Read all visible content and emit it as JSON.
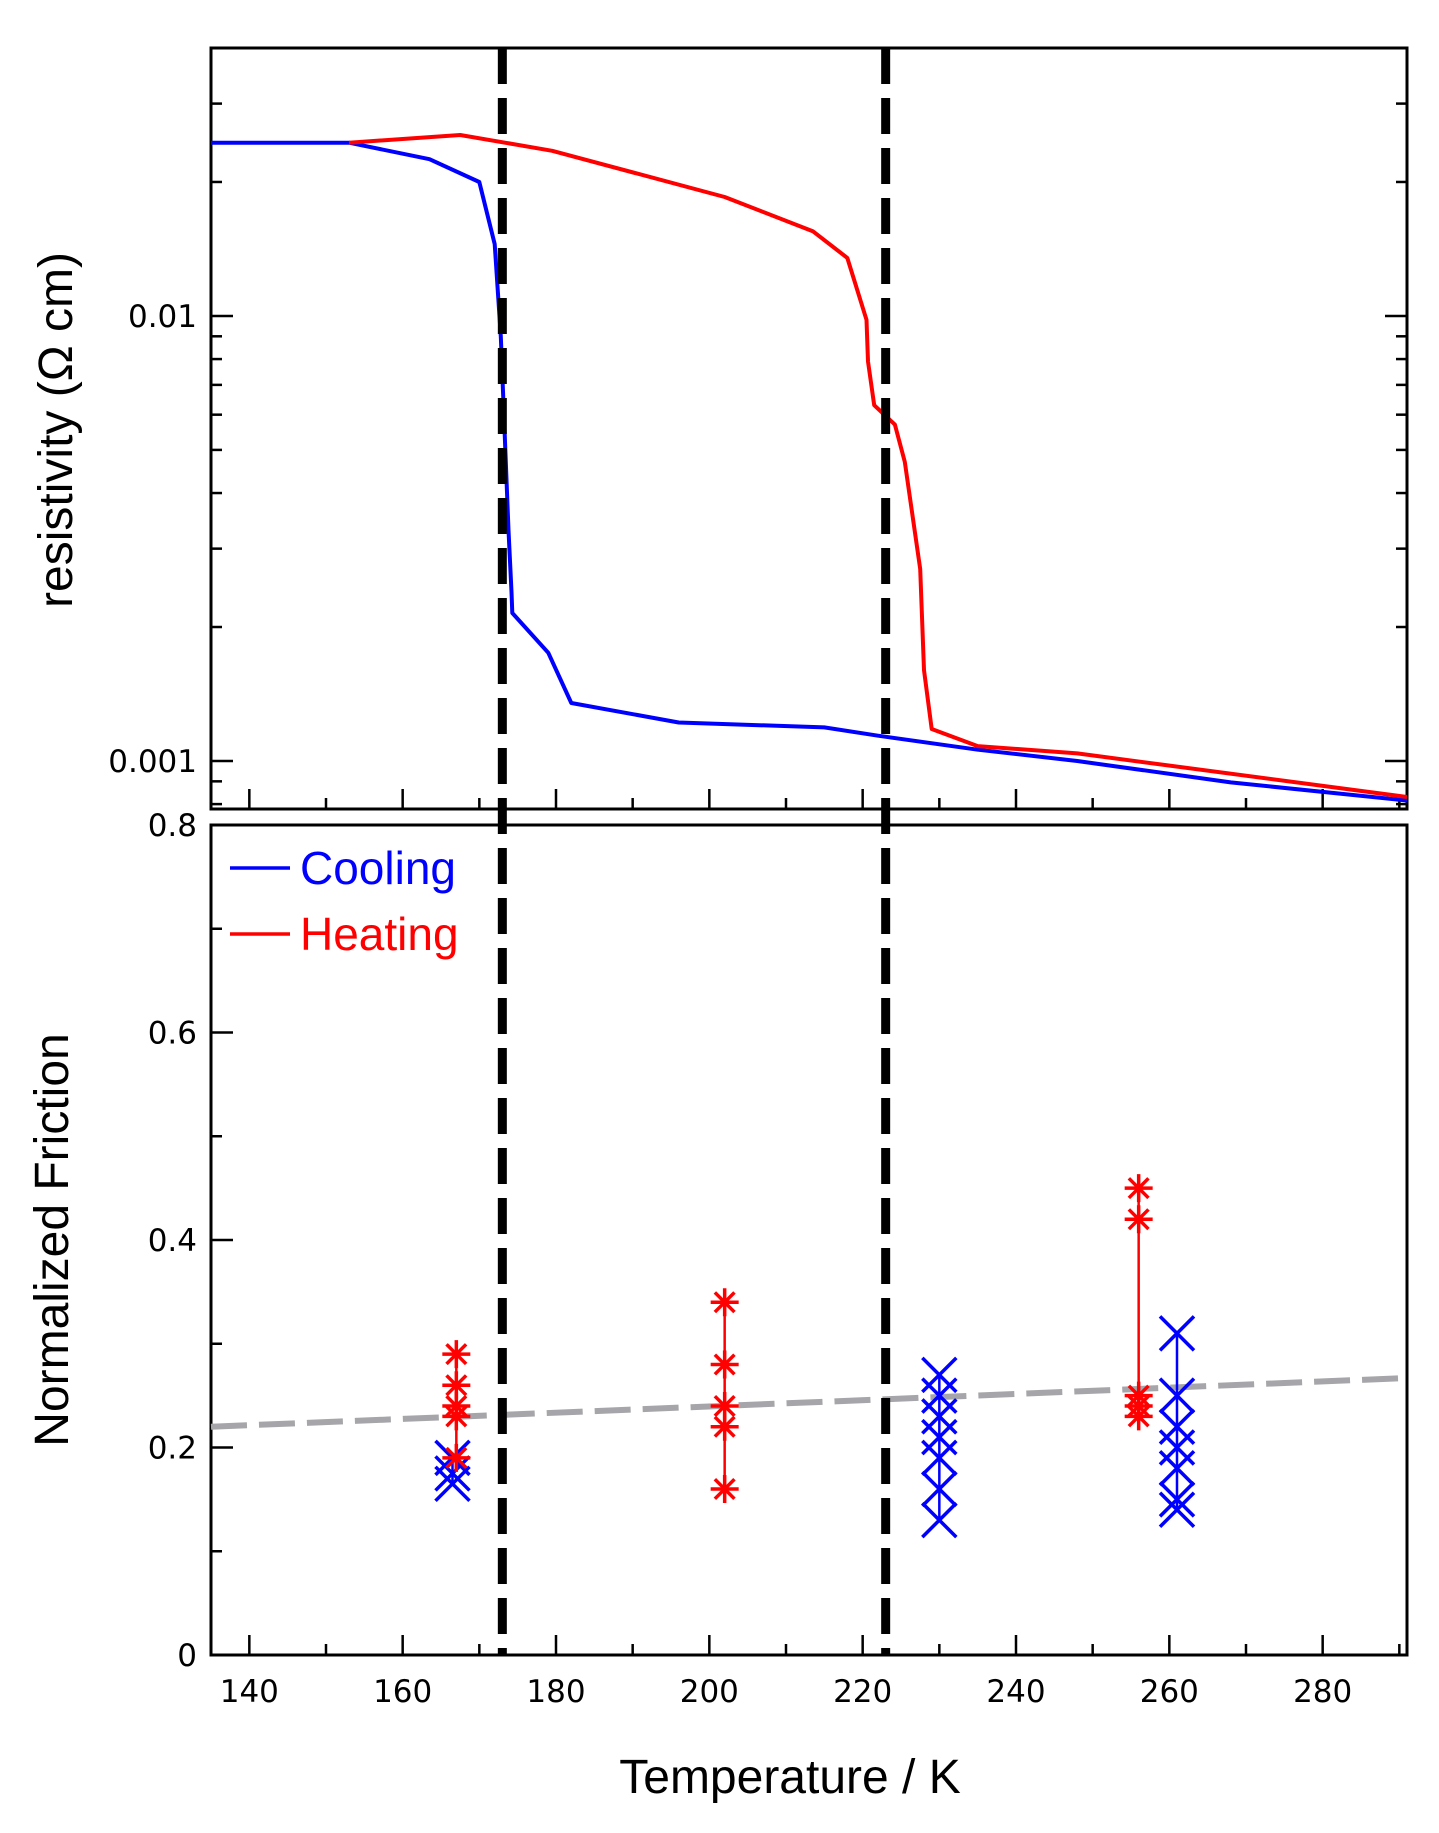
{
  "chart_data": [
    {
      "type": "line",
      "yscale": "log",
      "ylabel": "resistivity (Ω cm)",
      "xlim": [
        135,
        291
      ],
      "ylim": [
        0.00078,
        0.04
      ],
      "yticks": [
        {
          "value": 0.01,
          "label": "0.01"
        },
        {
          "value": 0.001,
          "label": "0.001"
        }
      ],
      "series": [
        {
          "name": "Cooling",
          "color": "#0000ff",
          "x": [
            135,
            153,
            163.5,
            170,
            172,
            172.8,
            173.3,
            173.8,
            174.2,
            174.3,
            179,
            182,
            196,
            215,
            222,
            235,
            248,
            268,
            291
          ],
          "y": [
            0.0245,
            0.0245,
            0.0225,
            0.02,
            0.0145,
            0.009,
            0.0055,
            0.0033,
            0.0024,
            0.00215,
            0.00175,
            0.00135,
            0.00122,
            0.00119,
            0.00114,
            0.00106,
            0.001,
            0.000895,
            0.000815
          ]
        },
        {
          "name": "Heating",
          "color": "#ff0000",
          "x": [
            153,
            167.5,
            179.5,
            202,
            213.5,
            218,
            220.5,
            220.7,
            221.5,
            224.2,
            225.5,
            227.5,
            228,
            229,
            235,
            248,
            291
          ],
          "y": [
            0.0245,
            0.0255,
            0.0235,
            0.0185,
            0.0155,
            0.0135,
            0.0098,
            0.0079,
            0.0063,
            0.0057,
            0.0047,
            0.0027,
            0.0016,
            0.00118,
            0.00108,
            0.00104,
            0.00083
          ]
        }
      ]
    },
    {
      "type": "scatter",
      "xlabel": "Temperature / K",
      "ylabel": "Normalized Friction",
      "xlim": [
        135,
        291
      ],
      "ylim": [
        0,
        0.8
      ],
      "xticks": [
        140,
        160,
        180,
        200,
        220,
        240,
        260,
        280
      ],
      "yticks": [
        {
          "value": 0,
          "label": "0"
        },
        {
          "value": 0.2,
          "label": "0.2"
        },
        {
          "value": 0.4,
          "label": "0.4"
        },
        {
          "value": 0.6,
          "label": "0.6"
        },
        {
          "value": 0.8,
          "label": "0.8"
        }
      ],
      "legend": {
        "position": "top-left",
        "entries": [
          {
            "label": "Cooling",
            "color": "#0000ff"
          },
          {
            "label": "Heating",
            "color": "#ff0000"
          }
        ]
      },
      "heating_groups": [
        {
          "x": 167,
          "values": [
            0.29,
            0.26,
            0.24,
            0.23,
            0.19
          ]
        },
        {
          "x": 202,
          "values": [
            0.34,
            0.28,
            0.24,
            0.22,
            0.16
          ]
        },
        {
          "x": 256,
          "values": [
            0.45,
            0.42,
            0.25,
            0.24,
            0.23
          ]
        }
      ],
      "cooling_groups": [
        {
          "x": 166.5,
          "values": [
            0.19,
            0.175,
            0.165
          ]
        },
        {
          "x": 230,
          "values": [
            0.27,
            0.25,
            0.23,
            0.21,
            0.19,
            0.16,
            0.13
          ]
        },
        {
          "x": 261,
          "values": [
            0.31,
            0.25,
            0.22,
            0.2,
            0.18,
            0.15,
            0.14
          ]
        }
      ],
      "trend_line": {
        "x": [
          135,
          291
        ],
        "y": [
          0.22,
          0.267
        ],
        "color": "#a6a6aa",
        "style": "dashed"
      }
    }
  ],
  "transition_lines": {
    "x": [
      173,
      223
    ],
    "color": "#000000",
    "style": "dashed"
  }
}
